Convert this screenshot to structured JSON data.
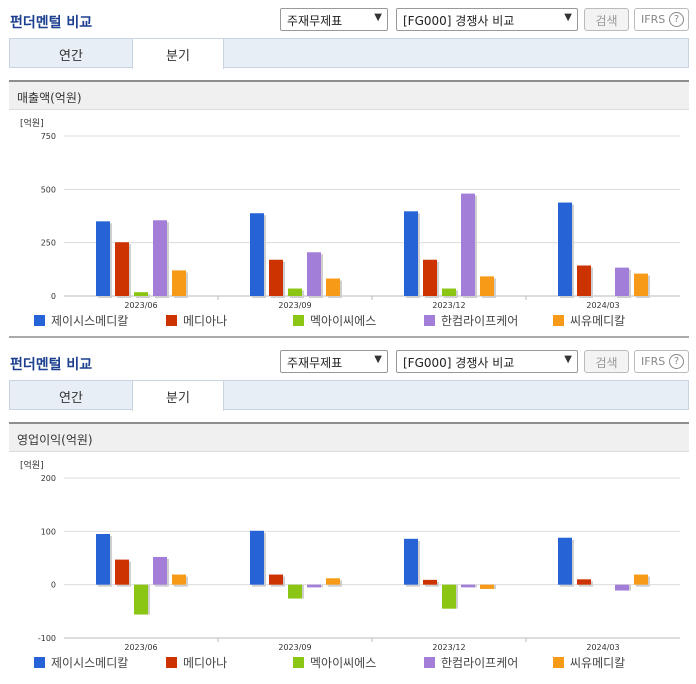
{
  "sections": [
    {
      "title": "펀더멘털 비교",
      "select_a": "주재무제표",
      "select_b": "[FG000] 경쟁사 비교",
      "search_label": "검색",
      "ifrs_label": "IFRS",
      "ifrs_help": "?",
      "tab_annual": "연간",
      "tab_quarter": "분기",
      "subtitle": "매출액(억원)"
    },
    {
      "title": "펀더멘털 비교",
      "select_a": "주재무제표",
      "select_b": "[FG000] 경쟁사 비교",
      "search_label": "검색",
      "ifrs_label": "IFRS",
      "ifrs_help": "?",
      "tab_annual": "연간",
      "tab_quarter": "분기",
      "subtitle": "영업이익(억원)"
    }
  ],
  "colors": {
    "title": "#1c3f8f",
    "series": [
      "#2563d6",
      "#cc3300",
      "#8cc614",
      "#a27ed8",
      "#f79a17"
    ]
  },
  "chart_data": [
    {
      "type": "bar",
      "title": "매출액(억원)",
      "unit_label": "[억원]",
      "categories": [
        "2023/06",
        "2023/09",
        "2023/12",
        "2024/03"
      ],
      "ylim": [
        0,
        750
      ],
      "yticks": [
        "750",
        "500",
        "250",
        "0"
      ],
      "ytick_values": [
        750,
        500,
        250,
        0
      ],
      "grid": true,
      "legend_position": "bottom",
      "series": [
        {
          "name": "제이시스메디칼",
          "values": [
            350,
            388,
            397,
            438
          ]
        },
        {
          "name": "메디아나",
          "values": [
            252,
            170,
            170,
            143
          ]
        },
        {
          "name": "멕아이씨에스",
          "values": [
            18,
            35,
            35,
            null
          ]
        },
        {
          "name": "한컴라이프케어",
          "values": [
            355,
            205,
            480,
            133
          ]
        },
        {
          "name": "씨유메디칼",
          "values": [
            120,
            82,
            92,
            105
          ]
        }
      ]
    },
    {
      "type": "bar",
      "title": "영업이익(억원)",
      "unit_label": "[억원]",
      "categories": [
        "2023/06",
        "2023/09",
        "2023/12",
        "2024/03"
      ],
      "ylim": [
        -100,
        200
      ],
      "yticks": [
        "200",
        "100",
        "0",
        "-100"
      ],
      "ytick_values": [
        200,
        100,
        0,
        -100
      ],
      "grid": true,
      "legend_position": "bottom",
      "series": [
        {
          "name": "제이시스메디칼",
          "values": [
            95,
            101,
            86,
            88
          ]
        },
        {
          "name": "메디아나",
          "values": [
            47,
            19,
            9,
            10
          ]
        },
        {
          "name": "멕아이씨에스",
          "values": [
            -56,
            -26,
            -45,
            null
          ]
        },
        {
          "name": "한컴라이프케어",
          "values": [
            52,
            -5,
            -5,
            -11
          ]
        },
        {
          "name": "씨유메디칼",
          "values": [
            19,
            12,
            -8,
            19
          ]
        }
      ]
    }
  ]
}
